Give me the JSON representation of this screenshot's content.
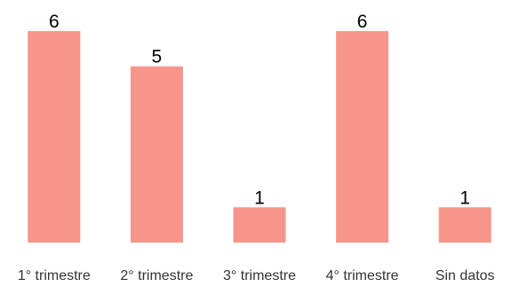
{
  "chart_data": {
    "type": "bar",
    "categories": [
      "1° trimestre",
      "2° trimestre",
      "3° trimestre",
      "4° trimestre",
      "Sin datos"
    ],
    "values": [
      6,
      5,
      1,
      6,
      1
    ],
    "title": "",
    "xlabel": "",
    "ylabel": "",
    "ylim": [
      0,
      6
    ],
    "grid": false,
    "legend": "none",
    "bar_color": "#f8958a",
    "data_labels": true
  }
}
